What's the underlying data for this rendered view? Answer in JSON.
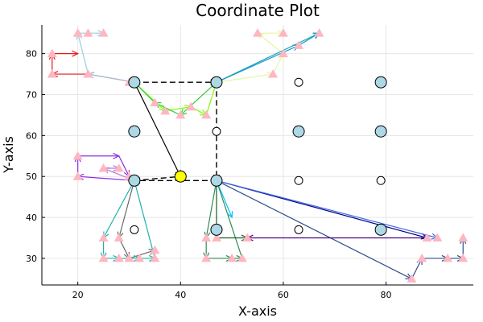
{
  "chart_data": {
    "type": "scatter",
    "title": "Coordinate Plot",
    "xlabel": "X-axis",
    "ylabel": "Y-axis",
    "xlim": [
      13,
      97
    ],
    "ylim": [
      23.5,
      87
    ],
    "xticks": [
      20,
      40,
      60,
      80
    ],
    "yticks": [
      30,
      40,
      50,
      60,
      70,
      80
    ],
    "grid": true,
    "legend": "none",
    "node_color": "#add8e6",
    "agent_color": "#ffff00",
    "target_color": "#ffb6c1",
    "nodes_filled": [
      {
        "x": 31,
        "y": 73
      },
      {
        "x": 47,
        "y": 73
      },
      {
        "x": 79,
        "y": 73
      },
      {
        "x": 31,
        "y": 61
      },
      {
        "x": 63,
        "y": 61
      },
      {
        "x": 79,
        "y": 61
      },
      {
        "x": 31,
        "y": 49
      },
      {
        "x": 47,
        "y": 49
      },
      {
        "x": 47,
        "y": 37
      },
      {
        "x": 79,
        "y": 37
      }
    ],
    "nodes_hollow": [
      {
        "x": 63,
        "y": 73
      },
      {
        "x": 47,
        "y": 61
      },
      {
        "x": 63,
        "y": 49
      },
      {
        "x": 79,
        "y": 49
      },
      {
        "x": 31,
        "y": 37
      },
      {
        "x": 63,
        "y": 37
      }
    ],
    "agent": {
      "x": 40,
      "y": 50
    },
    "targets": [
      {
        "x": 15,
        "y": 80
      },
      {
        "x": 15,
        "y": 75
      },
      {
        "x": 20,
        "y": 85
      },
      {
        "x": 22,
        "y": 85
      },
      {
        "x": 25,
        "y": 85
      },
      {
        "x": 22,
        "y": 75
      },
      {
        "x": 30,
        "y": 73
      },
      {
        "x": 35,
        "y": 68
      },
      {
        "x": 37,
        "y": 66
      },
      {
        "x": 40,
        "y": 65
      },
      {
        "x": 42,
        "y": 67
      },
      {
        "x": 45,
        "y": 65
      },
      {
        "x": 55,
        "y": 85
      },
      {
        "x": 60,
        "y": 85
      },
      {
        "x": 60,
        "y": 80
      },
      {
        "x": 58,
        "y": 75
      },
      {
        "x": 63,
        "y": 82
      },
      {
        "x": 67,
        "y": 85
      },
      {
        "x": 20,
        "y": 55
      },
      {
        "x": 20,
        "y": 50
      },
      {
        "x": 25,
        "y": 52
      },
      {
        "x": 28,
        "y": 52
      },
      {
        "x": 30,
        "y": 50
      },
      {
        "x": 25,
        "y": 35
      },
      {
        "x": 25,
        "y": 30
      },
      {
        "x": 28,
        "y": 30
      },
      {
        "x": 30,
        "y": 30
      },
      {
        "x": 32,
        "y": 30
      },
      {
        "x": 35,
        "y": 30
      },
      {
        "x": 35,
        "y": 32
      },
      {
        "x": 28,
        "y": 35
      },
      {
        "x": 45,
        "y": 35
      },
      {
        "x": 45,
        "y": 30
      },
      {
        "x": 47,
        "y": 35
      },
      {
        "x": 50,
        "y": 30
      },
      {
        "x": 52,
        "y": 30
      },
      {
        "x": 53,
        "y": 35
      },
      {
        "x": 85,
        "y": 25
      },
      {
        "x": 87,
        "y": 30
      },
      {
        "x": 90,
        "y": 35
      },
      {
        "x": 95,
        "y": 35
      },
      {
        "x": 95,
        "y": 30
      },
      {
        "x": 92,
        "y": 30
      },
      {
        "x": 88,
        "y": 35
      }
    ],
    "dashed_paths": [
      [
        {
          "x": 31,
          "y": 73
        },
        {
          "x": 47,
          "y": 73
        }
      ],
      [
        {
          "x": 47,
          "y": 73
        },
        {
          "x": 47,
          "y": 49
        }
      ],
      [
        {
          "x": 47,
          "y": 49
        },
        {
          "x": 31,
          "y": 49
        }
      ],
      [
        {
          "x": 31,
          "y": 49
        },
        {
          "x": 40,
          "y": 50
        }
      ]
    ],
    "series": [
      {
        "color": "#e41a1c",
        "points": [
          {
            "x": 31,
            "y": 73
          },
          {
            "x": 22,
            "y": 75
          },
          {
            "x": 15,
            "y": 75
          },
          {
            "x": 15,
            "y": 80
          },
          {
            "x": 20,
            "y": 80
          }
        ]
      },
      {
        "color": "#9ecae1",
        "points": [
          {
            "x": 31,
            "y": 73
          },
          {
            "x": 22,
            "y": 75
          },
          {
            "x": 20,
            "y": 85
          },
          {
            "x": 25,
            "y": 85
          }
        ]
      },
      {
        "color": "#7cfc00",
        "points": [
          {
            "x": 31,
            "y": 73
          },
          {
            "x": 37,
            "y": 66
          },
          {
            "x": 42,
            "y": 67
          },
          {
            "x": 45,
            "y": 65
          },
          {
            "x": 47,
            "y": 73
          }
        ]
      },
      {
        "color": "#32cd32",
        "points": [
          {
            "x": 47,
            "y": 73
          },
          {
            "x": 40,
            "y": 65
          },
          {
            "x": 35,
            "y": 68
          },
          {
            "x": 31,
            "y": 73
          }
        ]
      },
      {
        "color": "#000000",
        "points": [
          {
            "x": 31,
            "y": 73
          },
          {
            "x": 40,
            "y": 50
          }
        ]
      },
      {
        "color": "#e5f5a0",
        "points": [
          {
            "x": 47,
            "y": 73
          },
          {
            "x": 58,
            "y": 75
          },
          {
            "x": 60,
            "y": 80
          },
          {
            "x": 55,
            "y": 85
          },
          {
            "x": 60,
            "y": 85
          }
        ]
      },
      {
        "color": "#1f9ad6",
        "points": [
          {
            "x": 47,
            "y": 73
          },
          {
            "x": 63,
            "y": 82
          },
          {
            "x": 67,
            "y": 85
          }
        ]
      },
      {
        "color": "#17a2b8",
        "points": [
          {
            "x": 47,
            "y": 73
          },
          {
            "x": 67,
            "y": 85
          }
        ]
      },
      {
        "color": "#8a2be2",
        "points": [
          {
            "x": 31,
            "y": 49
          },
          {
            "x": 20,
            "y": 50
          },
          {
            "x": 20,
            "y": 55
          },
          {
            "x": 28,
            "y": 55
          },
          {
            "x": 30,
            "y": 50
          }
        ]
      },
      {
        "color": "#b07ad8",
        "points": [
          {
            "x": 31,
            "y": 49
          },
          {
            "x": 25,
            "y": 52
          },
          {
            "x": 28,
            "y": 52
          }
        ]
      },
      {
        "color": "#696969",
        "points": [
          {
            "x": 31,
            "y": 49
          },
          {
            "x": 28,
            "y": 35
          },
          {
            "x": 30,
            "y": 30
          },
          {
            "x": 35,
            "y": 32
          }
        ]
      },
      {
        "color": "#20b2aa",
        "points": [
          {
            "x": 31,
            "y": 49
          },
          {
            "x": 25,
            "y": 35
          },
          {
            "x": 25,
            "y": 30
          },
          {
            "x": 28,
            "y": 30
          },
          {
            "x": 32,
            "y": 30
          },
          {
            "x": 35,
            "y": 30
          },
          {
            "x": 31,
            "y": 49
          }
        ]
      },
      {
        "color": "#2e8b57",
        "points": [
          {
            "x": 47,
            "y": 49
          },
          {
            "x": 45,
            "y": 35
          },
          {
            "x": 45,
            "y": 30
          },
          {
            "x": 50,
            "y": 30
          },
          {
            "x": 52,
            "y": 30
          },
          {
            "x": 47,
            "y": 49
          }
        ]
      },
      {
        "color": "#1b5e20",
        "points": [
          {
            "x": 47,
            "y": 49
          },
          {
            "x": 47,
            "y": 35
          },
          {
            "x": 53,
            "y": 35
          }
        ]
      },
      {
        "color": "#00bfff",
        "points": [
          {
            "x": 47,
            "y": 49
          },
          {
            "x": 50,
            "y": 40
          }
        ]
      },
      {
        "color": "#00008b",
        "points": [
          {
            "x": 47,
            "y": 49
          },
          {
            "x": 88,
            "y": 35
          }
        ]
      },
      {
        "color": "#4169e1",
        "points": [
          {
            "x": 47,
            "y": 49
          },
          {
            "x": 90,
            "y": 35
          }
        ]
      },
      {
        "color": "#2f4f8f",
        "points": [
          {
            "x": 47,
            "y": 49
          },
          {
            "x": 85,
            "y": 25
          },
          {
            "x": 87,
            "y": 30
          },
          {
            "x": 92,
            "y": 30
          },
          {
            "x": 95,
            "y": 30
          },
          {
            "x": 95,
            "y": 35
          }
        ]
      },
      {
        "color": "#4b0082",
        "points": [
          {
            "x": 88,
            "y": 35
          },
          {
            "x": 53,
            "y": 35
          }
        ]
      }
    ]
  }
}
